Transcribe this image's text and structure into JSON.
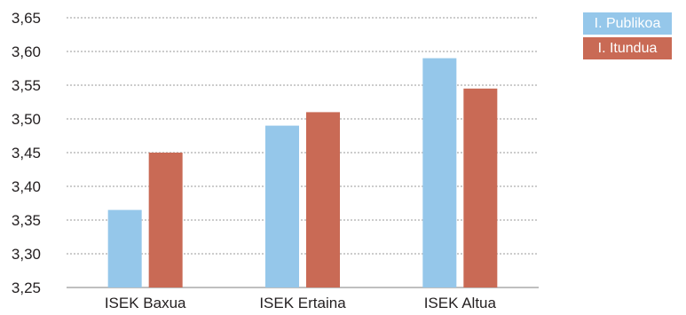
{
  "chart_data": {
    "type": "bar",
    "categories": [
      "ISEK Baxua",
      "ISEK Ertaina",
      "ISEK Altua"
    ],
    "series": [
      {
        "name": "I. Publikoa",
        "color": "#95c7ea",
        "values": [
          3.365,
          3.49,
          3.59
        ]
      },
      {
        "name": "I. Itundua",
        "color": "#c96a55",
        "values": [
          3.45,
          3.51,
          3.545
        ]
      }
    ],
    "ylim": [
      3.25,
      3.65
    ],
    "yticks": [
      "3,25",
      "3,30",
      "3,35",
      "3,40",
      "3,45",
      "3,50",
      "3,55",
      "3,60",
      "3,65"
    ],
    "ytick_values": [
      3.25,
      3.3,
      3.35,
      3.4,
      3.45,
      3.5,
      3.55,
      3.6,
      3.65
    ],
    "grid": true,
    "legend_position": "top-right"
  }
}
